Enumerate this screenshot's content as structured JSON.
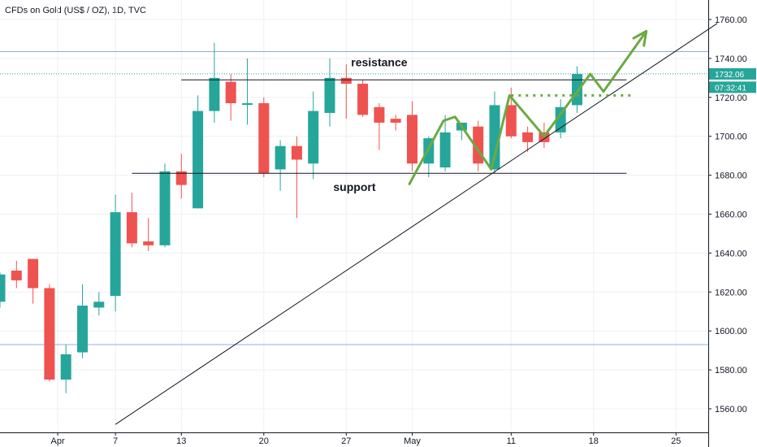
{
  "chart_data": {
    "type": "candlestick",
    "title": "CFDs on Gold (US$ / OZ), 1D, TVC",
    "ylim": [
      1550,
      1770
    ],
    "y_ticks": [
      1560,
      1580,
      1600,
      1620,
      1640,
      1660,
      1680,
      1700,
      1720,
      1740,
      1760
    ],
    "y_tick_labels": [
      "1560.00",
      "1580.00",
      "1600.00",
      "1620.00",
      "1640.00",
      "1660.00",
      "1680.00",
      "1700.00",
      "1720.00",
      "1740.00",
      "1760.00"
    ],
    "x_ticks": [
      {
        "label": "Apr",
        "index": 3.5
      },
      {
        "label": "7",
        "index": 7
      },
      {
        "label": "13",
        "index": 11
      },
      {
        "label": "20",
        "index": 16
      },
      {
        "label": "27",
        "index": 21
      },
      {
        "label": "May",
        "index": 25
      },
      {
        "label": "11",
        "index": 31
      },
      {
        "label": "18",
        "index": 36
      },
      {
        "label": "25",
        "index": 41
      }
    ],
    "x_index_range": [
      -0.5,
      43.5
    ],
    "candles": [
      {
        "o": 1615,
        "h": 1630,
        "l": 1612,
        "c": 1629
      },
      {
        "o": 1631,
        "h": 1636,
        "l": 1622,
        "c": 1626
      },
      {
        "o": 1637,
        "h": 1637,
        "l": 1614,
        "c": 1622
      },
      {
        "o": 1622,
        "h": 1624,
        "l": 1574,
        "c": 1575
      },
      {
        "o": 1575,
        "h": 1593,
        "l": 1568,
        "c": 1588
      },
      {
        "o": 1589,
        "h": 1624,
        "l": 1586,
        "c": 1613
      },
      {
        "o": 1612,
        "h": 1620,
        "l": 1608,
        "c": 1615
      },
      {
        "o": 1618,
        "h": 1670,
        "l": 1610,
        "c": 1661
      },
      {
        "o": 1661,
        "h": 1671,
        "l": 1643,
        "c": 1645
      },
      {
        "o": 1646,
        "h": 1658,
        "l": 1641,
        "c": 1644
      },
      {
        "o": 1644,
        "h": 1686,
        "l": 1643,
        "c": 1682
      },
      {
        "o": 1682,
        "h": 1691,
        "l": 1668,
        "c": 1675
      },
      {
        "o": 1663,
        "h": 1721,
        "l": 1663,
        "c": 1713
      },
      {
        "o": 1713,
        "h": 1748,
        "l": 1707,
        "c": 1730
      },
      {
        "o": 1728,
        "h": 1732,
        "l": 1708,
        "c": 1717
      },
      {
        "o": 1717,
        "h": 1740,
        "l": 1706,
        "c": 1717
      },
      {
        "o": 1717,
        "h": 1720,
        "l": 1679,
        "c": 1681
      },
      {
        "o": 1683,
        "h": 1698,
        "l": 1672,
        "c": 1695
      },
      {
        "o": 1695,
        "h": 1700,
        "l": 1658,
        "c": 1688
      },
      {
        "o": 1686,
        "h": 1723,
        "l": 1678,
        "c": 1713
      },
      {
        "o": 1712,
        "h": 1740,
        "l": 1705,
        "c": 1730
      },
      {
        "o": 1730,
        "h": 1737,
        "l": 1709,
        "c": 1727
      },
      {
        "o": 1727,
        "h": 1729,
        "l": 1710,
        "c": 1711
      },
      {
        "o": 1715,
        "h": 1717,
        "l": 1693,
        "c": 1707
      },
      {
        "o": 1709,
        "h": 1711,
        "l": 1703,
        "c": 1707
      },
      {
        "o": 1711,
        "h": 1718,
        "l": 1682,
        "c": 1686
      },
      {
        "o": 1686,
        "h": 1700,
        "l": 1679,
        "c": 1699
      },
      {
        "o": 1684,
        "h": 1711,
        "l": 1682,
        "c": 1702
      },
      {
        "o": 1703,
        "h": 1707,
        "l": 1698,
        "c": 1707
      },
      {
        "o": 1705,
        "h": 1708,
        "l": 1682,
        "c": 1686
      },
      {
        "o": 1683,
        "h": 1723,
        "l": 1681,
        "c": 1716
      },
      {
        "o": 1716,
        "h": 1725,
        "l": 1699,
        "c": 1700
      },
      {
        "o": 1702,
        "h": 1705,
        "l": 1692,
        "c": 1697
      },
      {
        "o": 1702,
        "h": 1707,
        "l": 1694,
        "c": 1697
      },
      {
        "o": 1702,
        "h": 1719,
        "l": 1699,
        "c": 1715
      },
      {
        "o": 1716,
        "h": 1736,
        "l": 1712,
        "c": 1732
      }
    ],
    "horizontal_lines": [
      {
        "y": 1743.5,
        "color": "#90a8e8"
      },
      {
        "y": 1593,
        "color": "#90b0e8"
      }
    ],
    "current_price_line": {
      "y": 1732.06,
      "color": "#26a69a"
    },
    "resistance": {
      "y": 1729,
      "from_index": 11,
      "to_index": 38
    },
    "support": {
      "y": 1681,
      "from_index": 8,
      "to_index": 38
    },
    "trendline": {
      "from": {
        "index": 7,
        "y": 1552
      },
      "to": {
        "index": 43.5,
        "y": 1758
      }
    },
    "annotations": [
      {
        "text": "resistance",
        "index": 23,
        "y": 1736
      },
      {
        "text": "support",
        "index": 21.5,
        "y": 1672
      }
    ],
    "projection_path": [
      {
        "index": 24.8,
        "y": 1675
      },
      {
        "index": 26.9,
        "y": 1708
      },
      {
        "index": 27.6,
        "y": 1710
      },
      {
        "index": 29.8,
        "y": 1683
      },
      {
        "index": 30.9,
        "y": 1721
      },
      {
        "index": 33,
        "y": 1700
      },
      {
        "index": 35.8,
        "y": 1732
      },
      {
        "index": 36.6,
        "y": 1723
      },
      {
        "index": 39.2,
        "y": 1754
      }
    ],
    "projection_color": "#6aaa42",
    "dotted_level": {
      "y": 1721,
      "from_index": 31,
      "to_index": 38.5
    },
    "badges": {
      "price": {
        "text": "1732.06",
        "y": 1732.06
      },
      "countdown": {
        "text": "07:32:41",
        "y": 1725.2
      }
    },
    "colors": {
      "up": "#26a69a",
      "down": "#ef5350",
      "grid": "#eef0f4",
      "axis": "#131722"
    }
  }
}
